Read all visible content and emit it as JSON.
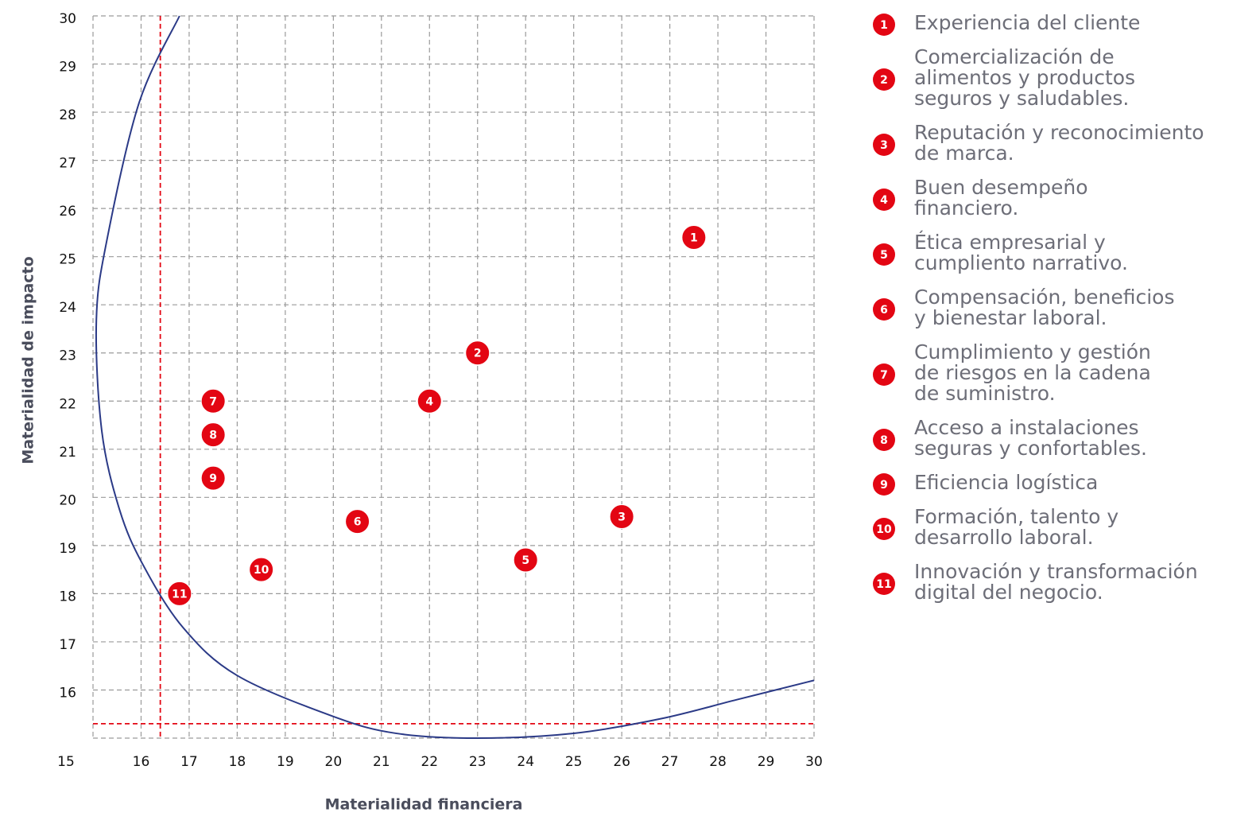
{
  "chart_data": {
    "type": "scatter",
    "xlabel": "Materialidad financiera",
    "ylabel": "Materialidad de impacto",
    "xlim": [
      15,
      30
    ],
    "ylim": [
      15,
      30
    ],
    "xticks": [
      15,
      16,
      17,
      18,
      19,
      20,
      21,
      22,
      23,
      24,
      25,
      26,
      27,
      28,
      29,
      30
    ],
    "yticks": [
      16,
      17,
      18,
      19,
      20,
      21,
      22,
      23,
      24,
      25,
      26,
      27,
      28,
      29,
      30
    ],
    "grid": true,
    "color": "#e30613",
    "points": [
      {
        "label": "1",
        "x": 27.5,
        "y": 25.4,
        "name": [
          "Experiencia del cliente"
        ]
      },
      {
        "label": "2",
        "x": 23.0,
        "y": 23.0,
        "name": [
          "Comercialización de",
          "alimentos y productos",
          "seguros y saludables."
        ]
      },
      {
        "label": "3",
        "x": 26.0,
        "y": 19.6,
        "name": [
          "Reputación y reconocimiento",
          "de marca."
        ]
      },
      {
        "label": "4",
        "x": 22.0,
        "y": 22.0,
        "name": [
          "Buen desempeño",
          "financiero."
        ]
      },
      {
        "label": "5",
        "x": 24.0,
        "y": 18.7,
        "name": [
          "Ética empresarial y",
          "cumpliento narrativo."
        ]
      },
      {
        "label": "6",
        "x": 20.5,
        "y": 19.5,
        "name": [
          "Compensación, beneficios",
          "y bienestar laboral."
        ]
      },
      {
        "label": "7",
        "x": 17.5,
        "y": 22.0,
        "name": [
          "Cumplimiento y gestión",
          "de riesgos en la cadena",
          "de suministro."
        ]
      },
      {
        "label": "8",
        "x": 17.5,
        "y": 21.3,
        "name": [
          "Acceso a instalaciones",
          "seguras y confortables."
        ]
      },
      {
        "label": "9",
        "x": 17.5,
        "y": 20.4,
        "name": [
          "Eficiencia logística"
        ]
      },
      {
        "label": "10",
        "x": 18.5,
        "y": 18.5,
        "name": [
          "Formación, talento y",
          "desarrollo laboral."
        ]
      },
      {
        "label": "11",
        "x": 16.8,
        "y": 18.0,
        "name": [
          "Innovación y transformación",
          "digital del negocio."
        ]
      }
    ],
    "reference_lines": {
      "x": 16.4,
      "y": 15.3,
      "color": "#e30613"
    },
    "curve": {
      "color": "#2b3a87",
      "x": [
        16.8,
        15.96,
        15.3,
        15.07,
        15.18,
        15.55,
        16.04,
        16.87,
        18.0,
        20.0,
        21.3,
        23.0,
        25.0,
        26.8,
        28.4,
        30.0
      ],
      "y": [
        30,
        28.2,
        25.4,
        23.7,
        21.4,
        19.75,
        18.6,
        17.3,
        16.3,
        15.45,
        15.1,
        15.0,
        15.1,
        15.4,
        15.8,
        16.2
      ]
    }
  }
}
